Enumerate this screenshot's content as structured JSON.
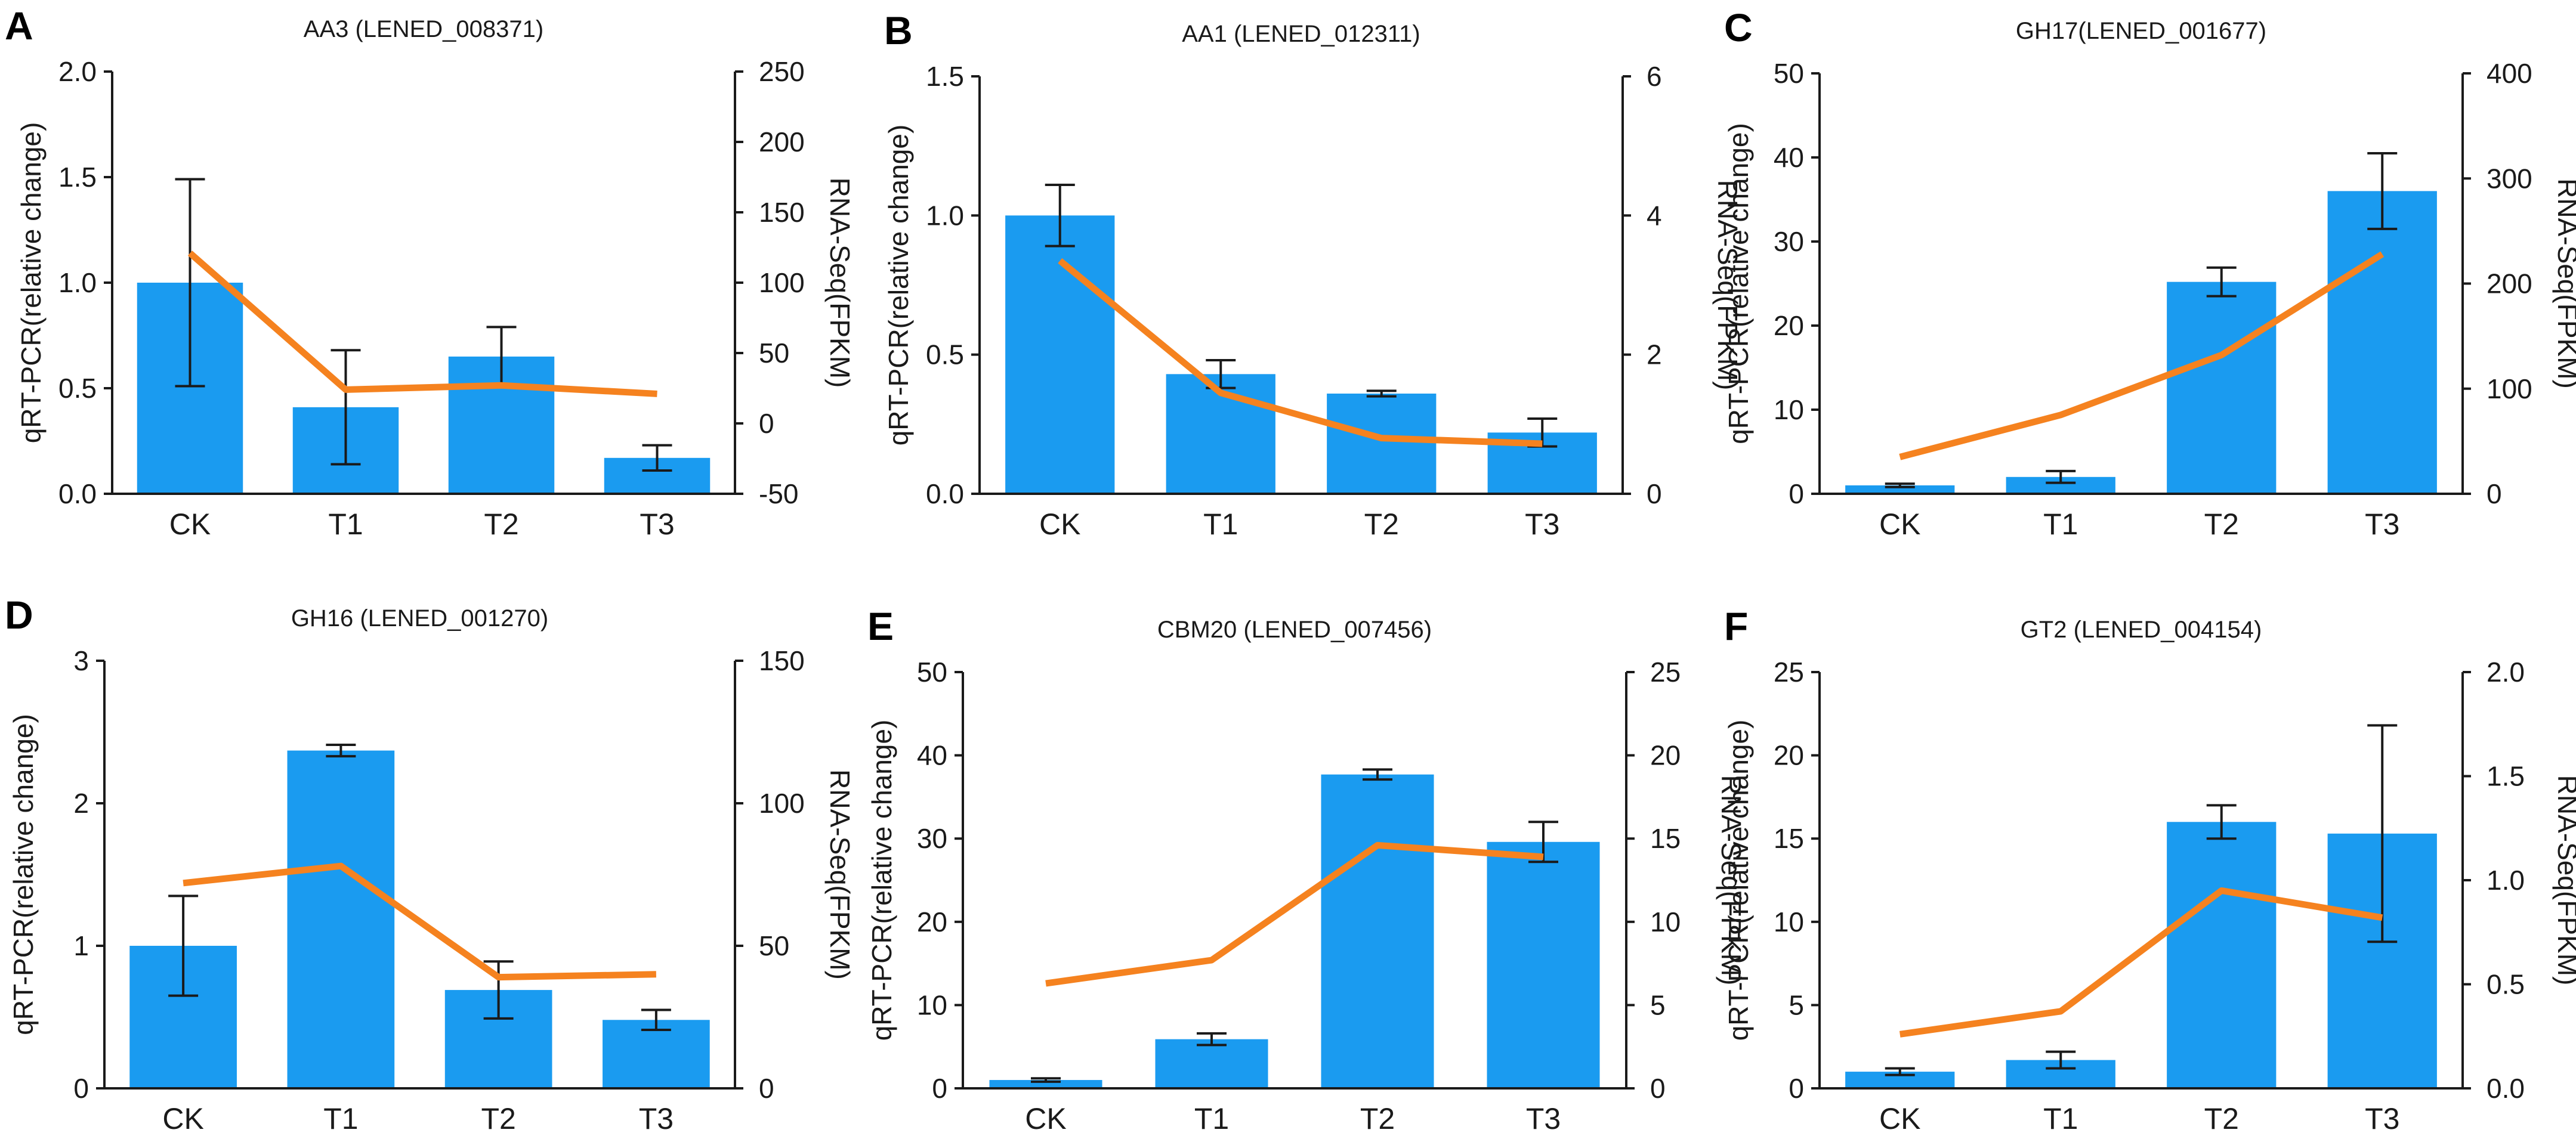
{
  "colors": {
    "bar": "#1a9bf0",
    "line": "#f5821f",
    "axis": "#1a1a1a",
    "error_bar": "#1a1a1a"
  },
  "chart_data": [
    {
      "panel": "A",
      "type": "bar",
      "title": "AA3 (LENED_008371)",
      "categories": [
        "CK",
        "T1",
        "T2",
        "T3"
      ],
      "ylabel": "qRT-PCR(relative change)",
      "y2label": "RNA-Seq(FPKM)",
      "ylim": [
        0,
        2.0
      ],
      "yticks": [
        0,
        0.5,
        1.0,
        1.5,
        2.0
      ],
      "ytick_labels": [
        "0.0",
        "0.5",
        "1.0",
        "1.5",
        "2.0"
      ],
      "y2lim": [
        -50,
        250
      ],
      "y2ticks": [
        -50,
        0,
        50,
        100,
        150,
        200,
        250
      ],
      "y2tick_labels": [
        "-50",
        "0",
        "50",
        "100",
        "150",
        "200",
        "250"
      ],
      "series": [
        {
          "name": "qRT-PCR",
          "axis": "left",
          "type": "bar",
          "values": [
            1.0,
            0.41,
            0.65,
            0.17
          ],
          "errors": [
            0.49,
            0.27,
            0.14,
            0.06
          ]
        },
        {
          "name": "RNA-Seq",
          "axis": "right",
          "type": "line",
          "values": [
            121,
            24,
            27,
            21
          ]
        }
      ]
    },
    {
      "panel": "B",
      "type": "bar",
      "title": "AA1 (LENED_012311)",
      "categories": [
        "CK",
        "T1",
        "T2",
        "T3"
      ],
      "ylabel": "qRT-PCR(relative change)",
      "y2label": "RNA-Seq(FPKM)",
      "ylim": [
        0,
        1.5
      ],
      "yticks": [
        0,
        0.5,
        1.0,
        1.5
      ],
      "ytick_labels": [
        "0.0",
        "0.5",
        "1.0",
        "1.5"
      ],
      "y2lim": [
        0,
        6
      ],
      "y2ticks": [
        0,
        2,
        4,
        6
      ],
      "y2tick_labels": [
        "0",
        "2",
        "4",
        "6"
      ],
      "series": [
        {
          "name": "qRT-PCR",
          "axis": "left",
          "type": "bar",
          "values": [
            1.0,
            0.43,
            0.36,
            0.22
          ],
          "errors": [
            0.11,
            0.05,
            0.01,
            0.05
          ]
        },
        {
          "name": "RNA-Seq",
          "axis": "right",
          "type": "line",
          "values": [
            3.35,
            1.45,
            0.8,
            0.72
          ]
        }
      ]
    },
    {
      "panel": "C",
      "type": "bar",
      "title": "GH17(LENED_001677)",
      "categories": [
        "CK",
        "T1",
        "T2",
        "T3"
      ],
      "ylabel": "qRT-PCR(relative change)",
      "y2label": "RNA-Seq(FPKM)",
      "ylim": [
        0,
        50
      ],
      "yticks": [
        0,
        10,
        20,
        30,
        40,
        50
      ],
      "ytick_labels": [
        "0",
        "10",
        "20",
        "30",
        "40",
        "50"
      ],
      "y2lim": [
        0,
        400
      ],
      "y2ticks": [
        0,
        100,
        200,
        300,
        400
      ],
      "y2tick_labels": [
        "0",
        "100",
        "200",
        "300",
        "400"
      ],
      "series": [
        {
          "name": "qRT-PCR",
          "axis": "left",
          "type": "bar",
          "values": [
            1.0,
            2.0,
            25.2,
            36.0
          ],
          "errors": [
            0.2,
            0.7,
            1.7,
            4.5
          ]
        },
        {
          "name": "RNA-Seq",
          "axis": "right",
          "type": "line",
          "values": [
            35,
            75,
            132,
            228
          ]
        }
      ]
    },
    {
      "panel": "D",
      "type": "bar",
      "title": "GH16 (LENED_001270)",
      "categories": [
        "CK",
        "T1",
        "T2",
        "T3"
      ],
      "ylabel": "qRT-PCR(relative change)",
      "y2label": "RNA-Seq(FPKM)",
      "ylim": [
        0,
        3
      ],
      "yticks": [
        0,
        1,
        2,
        3
      ],
      "ytick_labels": [
        "0",
        "1",
        "2",
        "3"
      ],
      "y2lim": [
        0,
        150
      ],
      "y2ticks": [
        0,
        50,
        100,
        150
      ],
      "y2tick_labels": [
        "0",
        "50",
        "100",
        "150"
      ],
      "series": [
        {
          "name": "qRT-PCR",
          "axis": "left",
          "type": "bar",
          "values": [
            1.0,
            2.37,
            0.69,
            0.48
          ],
          "errors": [
            0.35,
            0.04,
            0.2,
            0.07
          ]
        },
        {
          "name": "RNA-Seq",
          "axis": "right",
          "type": "line",
          "values": [
            72,
            78,
            39,
            40
          ]
        }
      ]
    },
    {
      "panel": "E",
      "type": "bar",
      "title": "CBM20 (LENED_007456)",
      "categories": [
        "CK",
        "T1",
        "T2",
        "T3"
      ],
      "ylabel": "qRT-PCR(relative change)",
      "y2label": "RNA-Seq(FPKM)",
      "ylim": [
        0,
        50
      ],
      "yticks": [
        0,
        10,
        20,
        30,
        40,
        50
      ],
      "ytick_labels": [
        "0",
        "10",
        "20",
        "30",
        "40",
        "50"
      ],
      "y2lim": [
        0,
        25
      ],
      "y2ticks": [
        0,
        5,
        10,
        15,
        20,
        25
      ],
      "y2tick_labels": [
        "0",
        "5",
        "10",
        "15",
        "20",
        "25"
      ],
      "series": [
        {
          "name": "qRT-PCR",
          "axis": "left",
          "type": "bar",
          "values": [
            1.0,
            5.9,
            37.7,
            29.6
          ],
          "errors": [
            0.2,
            0.7,
            0.6,
            2.4
          ]
        },
        {
          "name": "RNA-Seq",
          "axis": "right",
          "type": "line",
          "values": [
            6.3,
            7.7,
            14.6,
            13.9
          ]
        }
      ]
    },
    {
      "panel": "F",
      "type": "bar",
      "title": "GT2 (LENED_004154)",
      "categories": [
        "CK",
        "T1",
        "T2",
        "T3"
      ],
      "ylabel": "qRT-PCR(relative change)",
      "y2label": "RNA-Seq(FPKM)",
      "ylim": [
        0,
        25
      ],
      "yticks": [
        0,
        5,
        10,
        15,
        20,
        25
      ],
      "ytick_labels": [
        "0",
        "5",
        "10",
        "15",
        "20",
        "25"
      ],
      "y2lim": [
        0,
        2.0
      ],
      "y2ticks": [
        0,
        0.5,
        1.0,
        1.5,
        2.0
      ],
      "y2tick_labels": [
        "0.0",
        "0.5",
        "1.0",
        "1.5",
        "2.0"
      ],
      "series": [
        {
          "name": "qRT-PCR",
          "axis": "left",
          "type": "bar",
          "values": [
            1.0,
            1.7,
            16.0,
            15.3
          ],
          "errors": [
            0.2,
            0.5,
            1.0,
            6.5
          ]
        },
        {
          "name": "RNA-Seq",
          "axis": "right",
          "type": "line",
          "values": [
            0.26,
            0.37,
            0.95,
            0.82
          ]
        }
      ]
    }
  ]
}
